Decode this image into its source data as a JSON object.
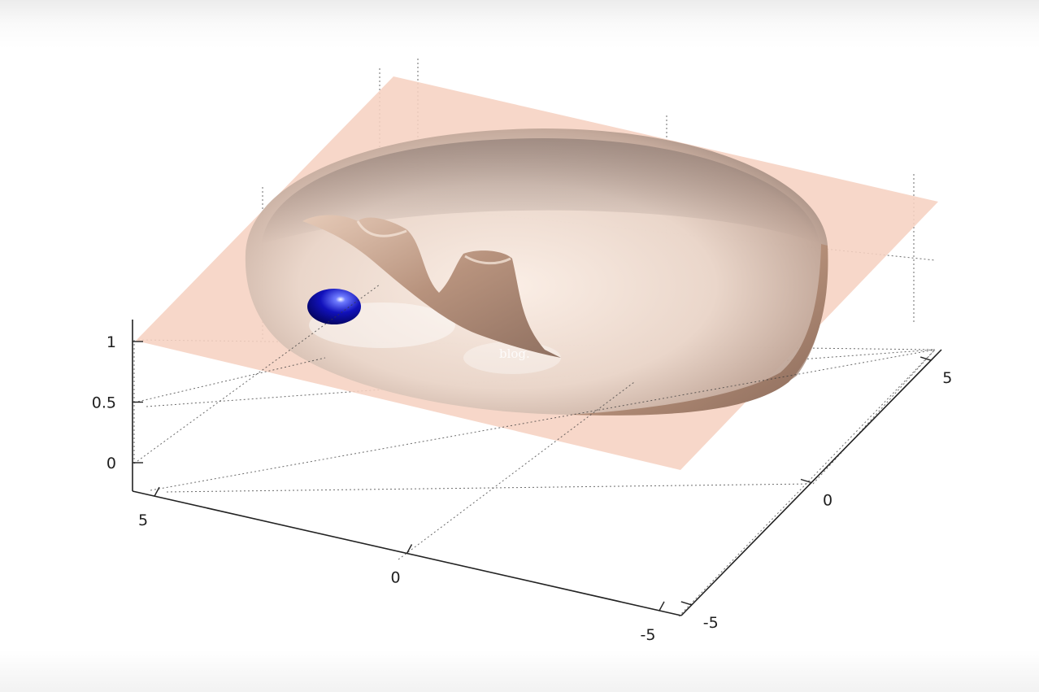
{
  "chart_data": {
    "type": "surface3d",
    "title": "",
    "axes": {
      "x": {
        "ticks": [
          5,
          0,
          -5
        ],
        "labels": [
          "5",
          "0",
          "-5"
        ]
      },
      "y": {
        "ticks": [
          5,
          0,
          -5
        ],
        "labels": [
          "5",
          "0",
          "-5"
        ]
      },
      "z": {
        "ticks": [
          1,
          0.5,
          0
        ],
        "labels": [
          "1",
          "0.5",
          "0"
        ]
      }
    },
    "grid": true,
    "surfaces": [
      {
        "name": "",
        "kind": "flat plane",
        "z": 1,
        "color": "#f6d2c2"
      },
      {
        "name": "",
        "kind": "bowl-shaped surface with walled channel",
        "color": "#c9a894"
      }
    ],
    "marker": {
      "kind": "sphere",
      "color": "#1111aa"
    },
    "watermark": "blog."
  }
}
